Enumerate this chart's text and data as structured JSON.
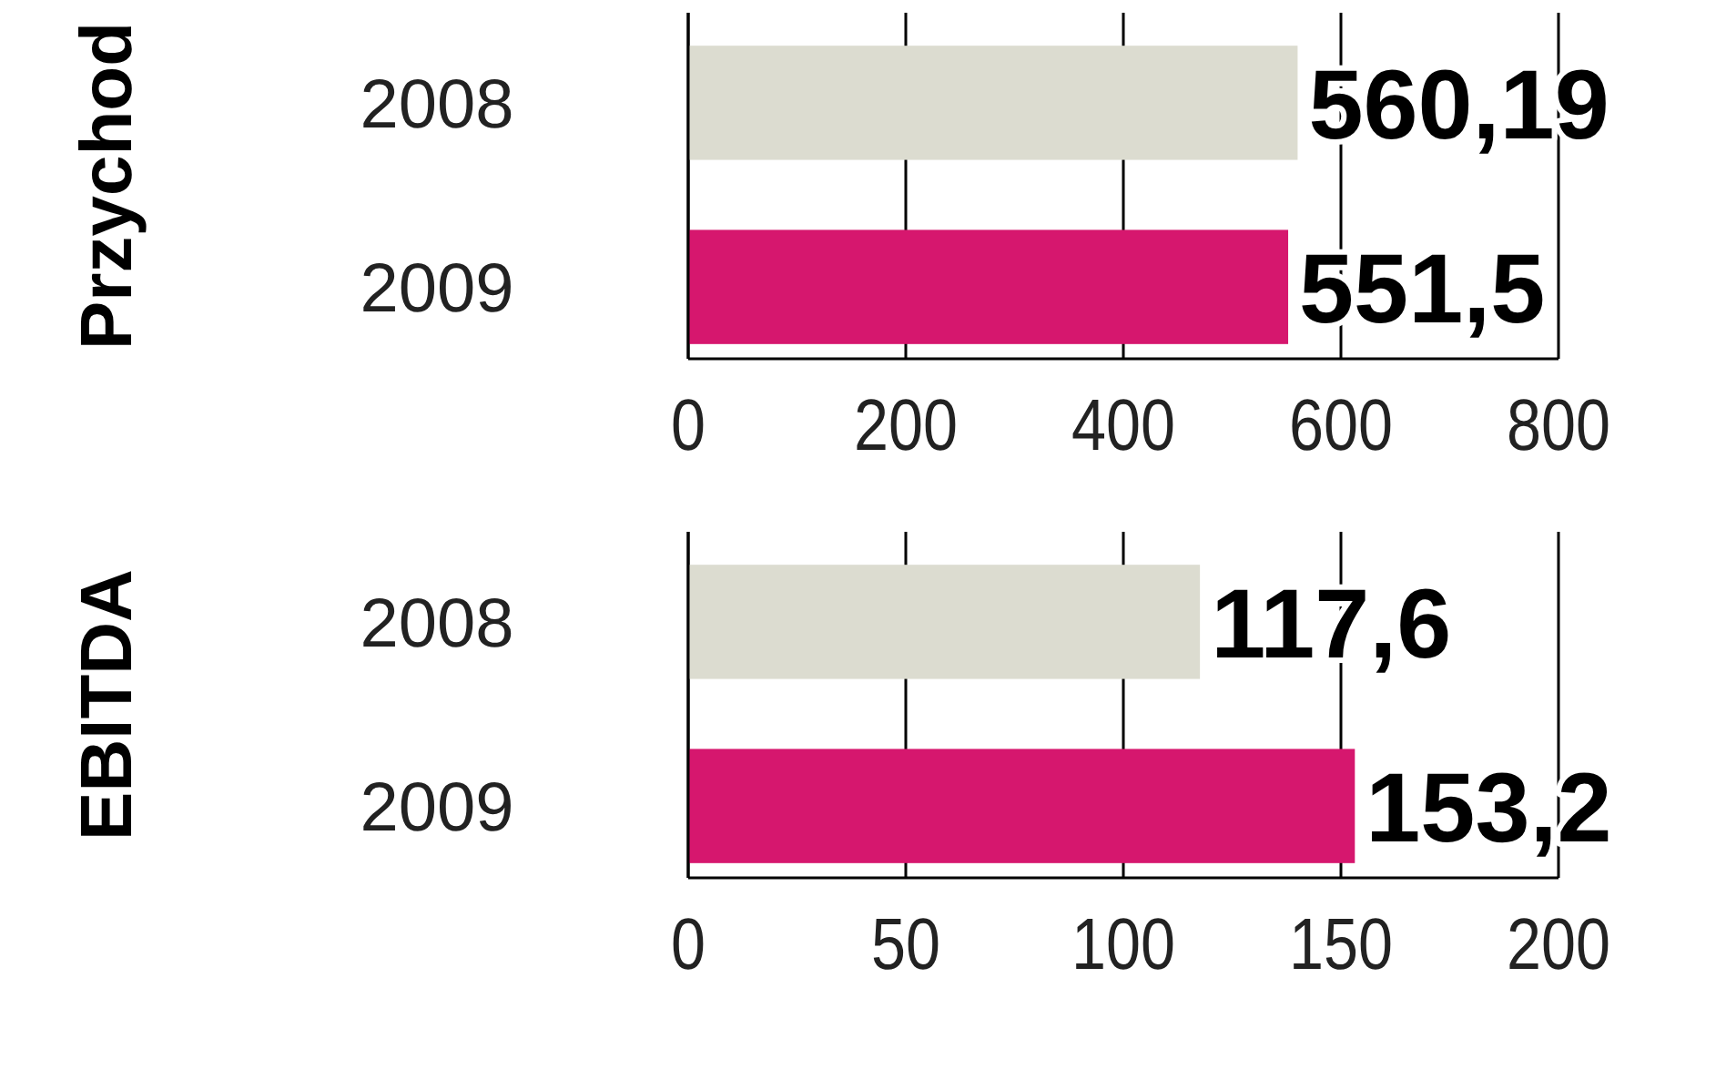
{
  "chart_data": [
    {
      "type": "bar",
      "orientation": "horizontal",
      "ylabel": "Przychod",
      "categories": [
        "2008",
        "2009"
      ],
      "values": [
        560.19,
        551.5
      ],
      "colors": [
        "#dcdcd0",
        "#d6176e"
      ],
      "value_labels": [
        "560,19",
        "551,5"
      ],
      "xlim": [
        0,
        800
      ],
      "xticks": [
        0,
        200,
        400,
        600,
        800
      ],
      "grid": "x"
    },
    {
      "type": "bar",
      "orientation": "horizontal",
      "ylabel": "EBITDA",
      "categories": [
        "2008",
        "2009"
      ],
      "values": [
        117.6,
        153.2
      ],
      "colors": [
        "#dcdcd0",
        "#d6176e"
      ],
      "value_labels": [
        "117,6",
        "153,2"
      ],
      "xlim": [
        0,
        200
      ],
      "xticks": [
        0,
        50,
        100,
        150,
        200
      ],
      "grid": "x"
    }
  ]
}
